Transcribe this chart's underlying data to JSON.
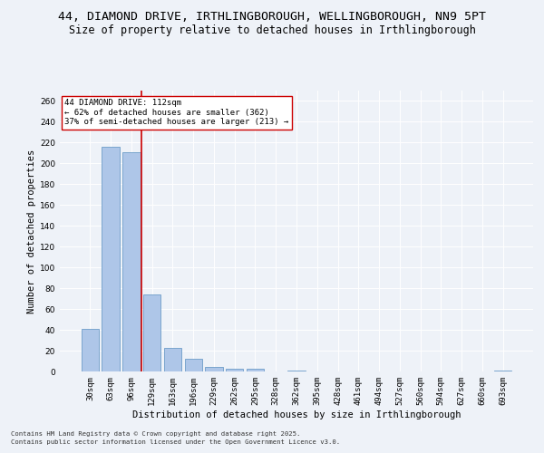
{
  "title1": "44, DIAMOND DRIVE, IRTHLINGBOROUGH, WELLINGBOROUGH, NN9 5PT",
  "title2": "Size of property relative to detached houses in Irthlingborough",
  "xlabel": "Distribution of detached houses by size in Irthlingborough",
  "ylabel": "Number of detached properties",
  "categories": [
    "30sqm",
    "63sqm",
    "96sqm",
    "129sqm",
    "163sqm",
    "196sqm",
    "229sqm",
    "262sqm",
    "295sqm",
    "328sqm",
    "362sqm",
    "395sqm",
    "428sqm",
    "461sqm",
    "494sqm",
    "527sqm",
    "560sqm",
    "594sqm",
    "627sqm",
    "660sqm",
    "693sqm"
  ],
  "values": [
    41,
    216,
    211,
    74,
    23,
    12,
    4,
    3,
    3,
    0,
    1,
    0,
    0,
    0,
    0,
    0,
    0,
    0,
    0,
    0,
    1
  ],
  "bar_color": "#aec6e8",
  "bar_edge_color": "#5a8fc0",
  "vline_x": 2.5,
  "vline_color": "#cc0000",
  "annotation_line1": "44 DIAMOND DRIVE: 112sqm",
  "annotation_line2": "← 62% of detached houses are smaller (362)",
  "annotation_line3": "37% of semi-detached houses are larger (213) →",
  "footer1": "Contains HM Land Registry data © Crown copyright and database right 2025.",
  "footer2": "Contains public sector information licensed under the Open Government Licence v3.0.",
  "ylim": [
    0,
    270
  ],
  "yticks": [
    0,
    20,
    40,
    60,
    80,
    100,
    120,
    140,
    160,
    180,
    200,
    220,
    240,
    260
  ],
  "bg_color": "#eef2f8",
  "grid_color": "#ffffff",
  "title_fontsize": 9.5,
  "subtitle_fontsize": 8.5,
  "axis_label_fontsize": 7.5,
  "tick_fontsize": 6.5,
  "annotation_fontsize": 6.5,
  "footer_fontsize": 5.2
}
